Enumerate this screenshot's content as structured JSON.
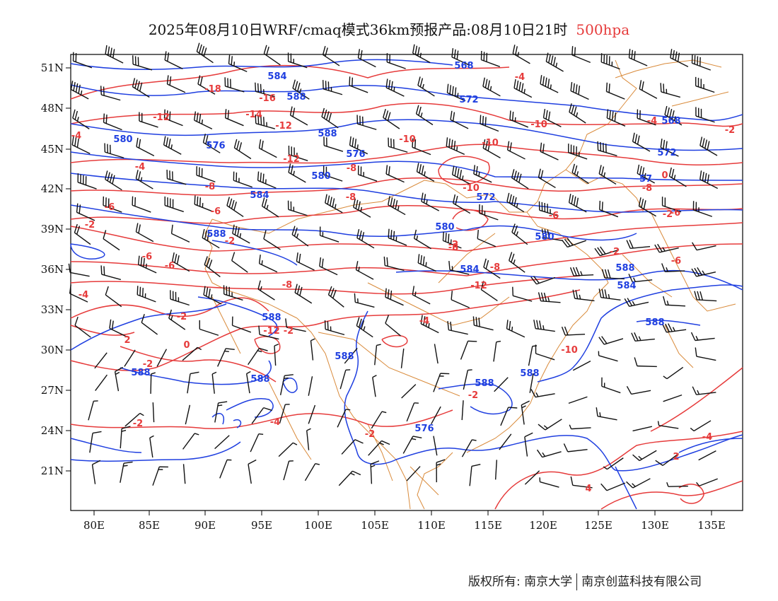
{
  "title": {
    "main": "2025年08月10日WRF/cmaq模式36km预报产品:08月10日21时",
    "level": "500hpa"
  },
  "map": {
    "lon_ticks": [
      "80E",
      "85E",
      "90E",
      "95E",
      "100E",
      "105E",
      "110E",
      "115E",
      "120E",
      "125E",
      "130E",
      "135E"
    ],
    "lat_ticks": [
      "51N",
      "48N",
      "45N",
      "42N",
      "39N",
      "36N",
      "33N",
      "30N",
      "27N",
      "24N",
      "21N"
    ],
    "height_labels": [
      "568",
      "584",
      "588",
      "572",
      "568",
      "572",
      "580",
      "576",
      "576",
      "580",
      "584",
      "580",
      "580",
      "584",
      "588",
      "584",
      "588",
      "588",
      "588",
      "588",
      "588",
      "588",
      "588",
      "588",
      "576",
      "572",
      "588",
      "57"
    ],
    "temp_labels": [
      "-18",
      "-16",
      "-12",
      "-14",
      "-12",
      "-12",
      "-10",
      "-10",
      "-10",
      "-10",
      "-8",
      "-8",
      "-6",
      "-8",
      "-6",
      "-8",
      "-6",
      "-4",
      "-6",
      "-8",
      "-6",
      "-2",
      "0",
      "-2",
      "-4",
      "-2",
      "-4",
      "-2",
      "-2",
      "2",
      "0",
      "-2",
      "-2",
      "-2",
      "-2",
      "-2",
      "-4",
      "-4",
      "-4",
      "-8",
      "-12",
      "-12",
      "-10",
      "-6",
      "-2",
      "-4",
      "4",
      "2",
      "-4",
      "-2",
      "-6",
      "-8"
    ],
    "colors": {
      "height": "#1f3fe0",
      "temperature": "#e63b3b",
      "border": "#d98a3a",
      "wind": "#111111"
    }
  },
  "footer": {
    "copyright": "版权所有: 南京大学",
    "company": "南京创蓝科技有限公司"
  }
}
